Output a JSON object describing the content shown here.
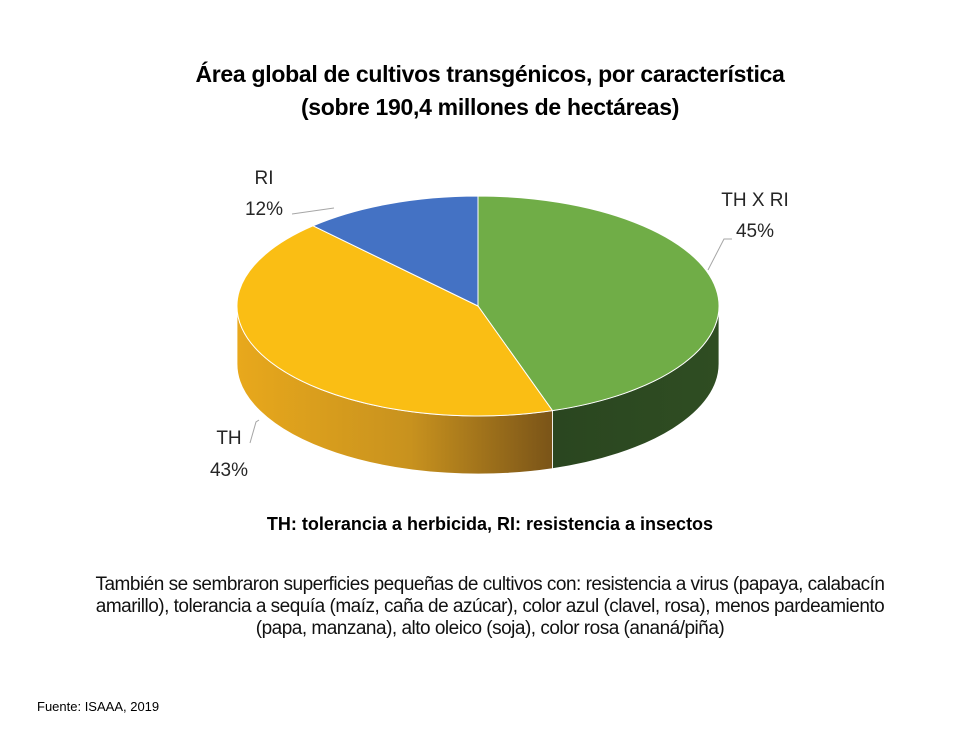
{
  "title": {
    "line1": "Área global de cultivos transgénicos, por característica",
    "line2": "(sobre 190,4 millones de hectáreas)"
  },
  "subtitle": "TH: tolerancia a herbicida, RI: resistencia a insectos",
  "note": {
    "line1": "También se sembraron superficies pequeñas de cultivos con: resistencia a virus (papaya, calabacín",
    "line2": "amarillo), tolerancia a sequía (maíz, caña de azúcar), color azul (clavel, rosa), menos pardeamiento",
    "line3": "(papa, manzana), alto oleico (soja), color rosa (ananá/piña)"
  },
  "source": "Fuente: ISAAA, 2019",
  "chart_data": {
    "type": "pie",
    "style": "3d",
    "start": "12 o'clock, clockwise",
    "slices": [
      {
        "label": "TH X RI",
        "value": 45,
        "value_label": "45%",
        "color": "#70ad47",
        "side_color": "#2e4a1f"
      },
      {
        "label": "TH",
        "value": 43,
        "value_label": "43%",
        "color": "#fabe14",
        "side_color": "#c8961a"
      },
      {
        "label": "RI",
        "value": 12,
        "value_label": "12%",
        "color": "#4472c4",
        "side_color": "#2f4f88"
      }
    ]
  }
}
